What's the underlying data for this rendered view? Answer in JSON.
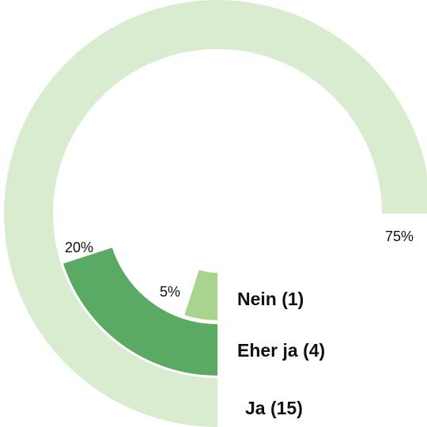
{
  "chart_data": {
    "type": "radial_bar",
    "ylim": [
      0,
      100
    ],
    "series": [
      {
        "name": "Ja (15)",
        "color": "#d9ecd0",
        "values": [
          75
        ],
        "value_labels": [
          "75%"
        ]
      },
      {
        "name": "Eher ja (4)",
        "color": "#5aaa64",
        "values": [
          20
        ],
        "value_labels": [
          "20%"
        ]
      },
      {
        "name": "Nein (1)",
        "color": "#a8d490",
        "values": [
          5
        ],
        "value_labels": [
          "5%"
        ]
      }
    ]
  }
}
